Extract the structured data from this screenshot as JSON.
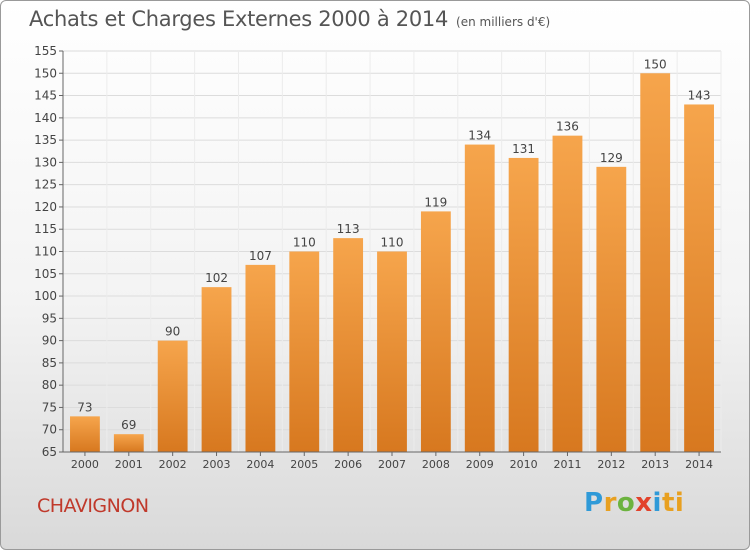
{
  "header": {
    "title": "Achats et Charges Externes 2000 à 2014",
    "subtitle": "(en milliers d'€)"
  },
  "footer": {
    "town": "CHAVIGNON",
    "logo_letters": [
      "P",
      "r",
      "o",
      "x",
      "i",
      "ti"
    ]
  },
  "colors": {
    "bar_top": "#f6a54c",
    "bar_bottom": "#d7781f",
    "town": "#c0392b",
    "axis_text": "#444444"
  },
  "chart_data": {
    "type": "bar",
    "title": "Achats et Charges Externes 2000 à 2014",
    "subtitle": "(en milliers d'€)",
    "categories": [
      "2000",
      "2001",
      "2002",
      "2003",
      "2004",
      "2005",
      "2006",
      "2007",
      "2008",
      "2009",
      "2010",
      "2011",
      "2012",
      "2013",
      "2014"
    ],
    "values": [
      73,
      69,
      90,
      102,
      107,
      110,
      113,
      110,
      119,
      134,
      131,
      136,
      129,
      150,
      143
    ],
    "data_labels": [
      "73",
      "69",
      "90",
      "102",
      "107",
      "110",
      "113",
      "110",
      "119",
      "134",
      "131",
      "136",
      "129",
      "150",
      "143"
    ],
    "ylim": [
      65,
      155
    ],
    "yticks": [
      65,
      70,
      75,
      80,
      85,
      90,
      95,
      100,
      105,
      110,
      115,
      120,
      125,
      130,
      135,
      140,
      145,
      150,
      155
    ],
    "xlabel": "",
    "ylabel": "",
    "grid": true,
    "legend": "none"
  }
}
